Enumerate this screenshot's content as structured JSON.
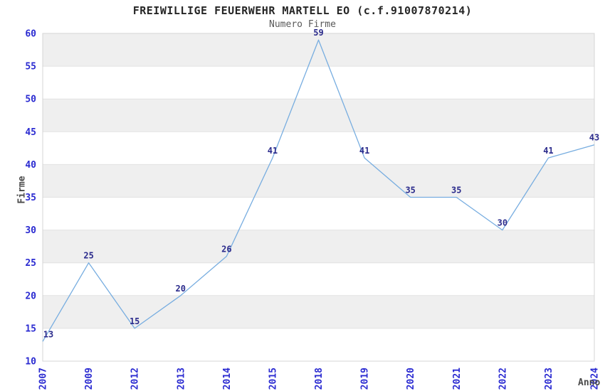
{
  "chart_data": {
    "type": "line",
    "title": "FREIWILLIGE FEUERWEHR MARTELL EO (c.f.91007870214)",
    "subtitle": "Numero Firme",
    "xlabel": "Anno",
    "ylabel": "Firme",
    "categories": [
      "2007",
      "2009",
      "2012",
      "2013",
      "2014",
      "2015",
      "2018",
      "2019",
      "2020",
      "2021",
      "2022",
      "2023",
      "2024"
    ],
    "values": [
      13,
      25,
      15,
      20,
      26,
      41,
      59,
      41,
      35,
      35,
      30,
      41,
      43
    ],
    "ylim": [
      10,
      60
    ],
    "ytick_step": 5,
    "yticks": [
      10,
      15,
      20,
      25,
      30,
      35,
      40,
      45,
      50,
      55,
      60
    ],
    "legend": "none",
    "grid": "horizontal-bands",
    "colors": {
      "line": "#77ade0",
      "band": "#efefef",
      "gridline": "#e2e2e2",
      "plot_border": "#d4d4d4",
      "tick_label": "#2b2bd1",
      "data_label": "#2b2b8c",
      "title": "#262626",
      "subtitle": "#595959",
      "axis_title": "#4a4a4a",
      "background": "#ffffff"
    }
  }
}
